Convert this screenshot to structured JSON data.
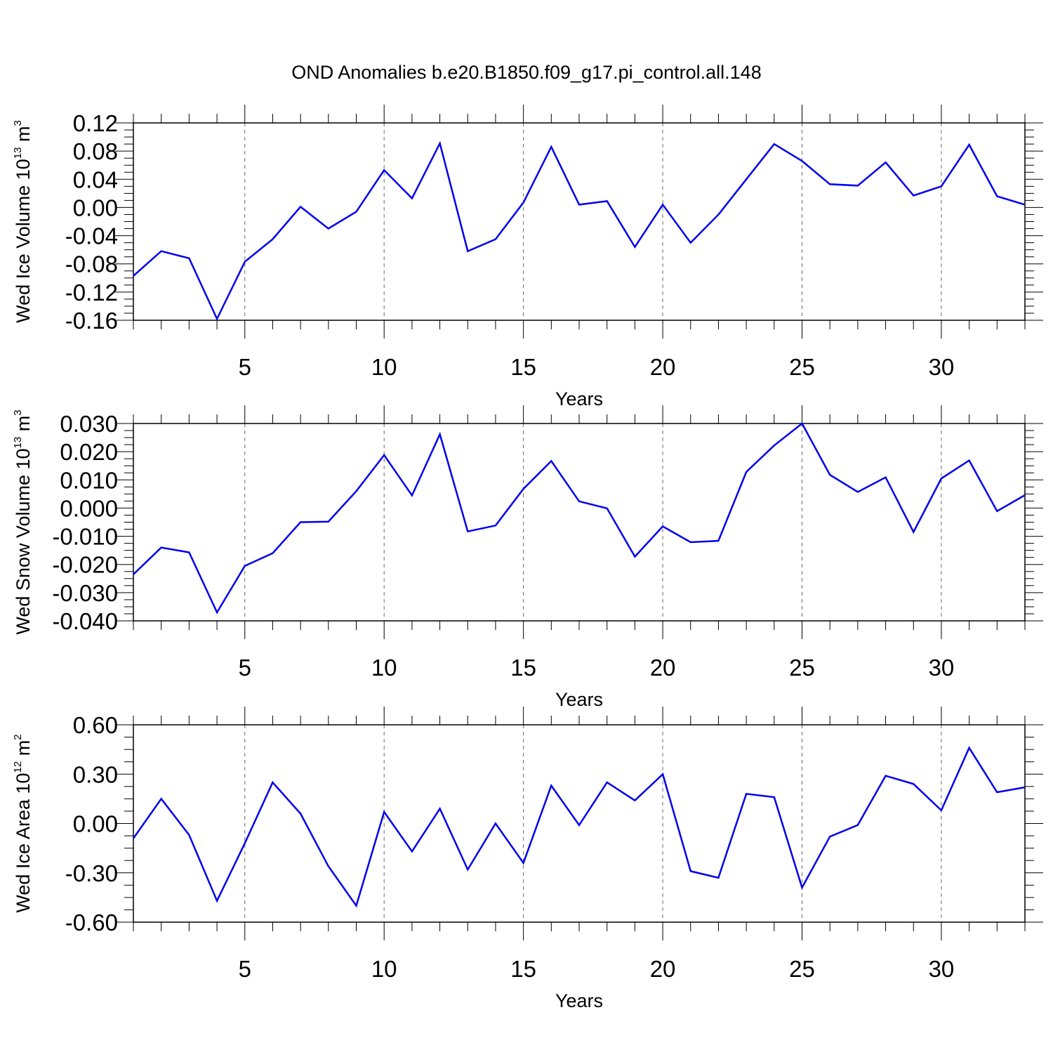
{
  "title": "OND Anomalies b.e20.B1850.f09_g17.pi_control.all.148",
  "colors": {
    "line": "#0000ee",
    "frame": "#000000",
    "grid": "#666666"
  },
  "chart_data": [
    {
      "type": "line",
      "ylabel_main": "Wed Ice Volume 10",
      "ylabel_exp": "13",
      "ylabel_unit": " m",
      "ylabel_unit_exp": "3",
      "xlabel": "Years",
      "xlim": [
        1,
        33
      ],
      "ylim": [
        -0.16,
        0.12
      ],
      "yticks": [
        "0.12",
        "0.08",
        "0.04",
        "0.00",
        "-0.04",
        "-0.08",
        "-0.12",
        "-0.16"
      ],
      "ytick_values": [
        0.12,
        0.08,
        0.04,
        0.0,
        -0.04,
        -0.08,
        -0.12,
        -0.16
      ],
      "xticks": [
        "5",
        "10",
        "15",
        "20",
        "25",
        "30"
      ],
      "xtick_values": [
        5,
        10,
        15,
        20,
        25,
        30
      ],
      "grid": "vertical dashed at major x ticks",
      "series": [
        {
          "x": [
            1,
            2,
            3,
            4,
            5,
            6,
            7,
            8,
            9,
            10,
            11,
            12,
            13,
            14,
            15,
            16,
            17,
            18,
            19,
            20,
            21,
            22,
            23,
            24,
            25,
            26,
            27,
            28,
            29,
            30,
            31,
            32,
            33
          ],
          "values": [
            -0.097,
            -0.062,
            -0.072,
            -0.158,
            -0.077,
            -0.045,
            0.001,
            -0.03,
            -0.006,
            0.053,
            0.013,
            0.091,
            -0.062,
            -0.045,
            0.007,
            0.086,
            0.004,
            0.009,
            -0.056,
            0.004,
            -0.05,
            -0.01,
            0.04,
            0.09,
            0.066,
            0.033,
            0.031,
            0.064,
            0.017,
            0.03,
            0.089,
            0.016,
            0.004
          ]
        }
      ]
    },
    {
      "type": "line",
      "ylabel_main": "Wed Snow Volume 10",
      "ylabel_exp": "13",
      "ylabel_unit": " m",
      "ylabel_unit_exp": "3",
      "xlabel": "Years",
      "xlim": [
        1,
        33
      ],
      "ylim": [
        -0.04,
        0.03
      ],
      "yticks": [
        "0.030",
        "0.020",
        "0.010",
        "0.000",
        "-0.010",
        "-0.020",
        "-0.030",
        "-0.040"
      ],
      "ytick_values": [
        0.03,
        0.02,
        0.01,
        0.0,
        -0.01,
        -0.02,
        -0.03,
        -0.04
      ],
      "xticks": [
        "5",
        "10",
        "15",
        "20",
        "25",
        "30"
      ],
      "xtick_values": [
        5,
        10,
        15,
        20,
        25,
        30
      ],
      "grid": "vertical dashed at major x ticks",
      "series": [
        {
          "x": [
            1,
            2,
            3,
            4,
            5,
            6,
            7,
            8,
            9,
            10,
            11,
            12,
            13,
            14,
            15,
            16,
            17,
            18,
            19,
            20,
            21,
            22,
            23,
            24,
            25,
            26,
            27,
            28,
            29,
            30,
            31,
            32,
            33
          ],
          "values": [
            -0.0235,
            -0.014,
            -0.0157,
            -0.037,
            -0.0205,
            -0.016,
            -0.005,
            -0.0048,
            0.006,
            0.0188,
            0.0045,
            0.0262,
            -0.0083,
            -0.0062,
            0.0068,
            0.0167,
            0.0024,
            -0.0001,
            -0.0172,
            -0.0065,
            -0.0121,
            -0.0116,
            0.0128,
            0.0222,
            0.03,
            0.0118,
            0.0057,
            0.0109,
            -0.0085,
            0.0105,
            0.0169,
            -0.0011,
            0.0046
          ]
        }
      ]
    },
    {
      "type": "line",
      "ylabel_main": "Wed Ice Area 10",
      "ylabel_exp": "12",
      "ylabel_unit": " m",
      "ylabel_unit_exp": "2",
      "xlabel": "Years",
      "xlim": [
        1,
        33
      ],
      "ylim": [
        -0.6,
        0.6
      ],
      "yticks": [
        "0.60",
        "0.30",
        "0.00",
        "-0.30",
        "-0.60"
      ],
      "ytick_values": [
        0.6,
        0.3,
        0.0,
        -0.3,
        -0.6
      ],
      "xticks": [
        "5",
        "10",
        "15",
        "20",
        "25",
        "30"
      ],
      "xtick_values": [
        5,
        10,
        15,
        20,
        25,
        30
      ],
      "grid": "vertical dashed at major x ticks",
      "series": [
        {
          "x": [
            1,
            2,
            3,
            4,
            5,
            6,
            7,
            8,
            9,
            10,
            11,
            12,
            13,
            14,
            15,
            16,
            17,
            18,
            19,
            20,
            21,
            22,
            23,
            24,
            25,
            26,
            27,
            28,
            29,
            30,
            31,
            32,
            33
          ],
          "values": [
            -0.09,
            0.15,
            -0.07,
            -0.47,
            -0.12,
            0.25,
            0.06,
            -0.26,
            -0.5,
            0.07,
            -0.17,
            0.09,
            -0.28,
            0.0,
            -0.24,
            0.23,
            -0.01,
            0.25,
            0.14,
            0.3,
            -0.29,
            -0.33,
            0.18,
            0.16,
            -0.39,
            -0.08,
            -0.01,
            0.29,
            0.24,
            0.08,
            0.46,
            0.19,
            0.22
          ]
        }
      ]
    }
  ]
}
